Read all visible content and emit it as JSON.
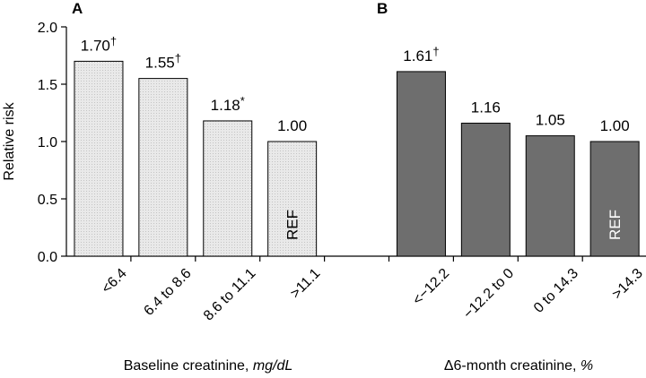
{
  "chart_data": {
    "type": "bar",
    "ylabel": "Relative risk",
    "ylim": [
      0,
      2.0
    ],
    "yticks": [
      "0.0",
      "0.5",
      "1.0",
      "1.5",
      "2.0"
    ],
    "ytick_values": [
      0,
      0.5,
      1.0,
      1.5,
      2.0
    ],
    "grid": false,
    "panels": [
      {
        "letter": "A",
        "xlabel_prefix": "Baseline creatinine, ",
        "xlabel_unit": "mg/dL",
        "fill": "#e4e4e4",
        "ref_text_color": "#000000",
        "categories": [
          "<6.4",
          "6.4 to 8.6",
          "8.6 to 11.1",
          ">11.1"
        ],
        "values": [
          1.7,
          1.55,
          1.18,
          1.0
        ],
        "value_labels": [
          "1.70",
          "1.55",
          "1.18",
          "1.00"
        ],
        "marks": [
          "†",
          "†",
          "*",
          ""
        ],
        "ref_index": 3,
        "ref_label": "REF"
      },
      {
        "letter": "B",
        "xlabel_prefix": "Δ6-month creatinine, ",
        "xlabel_unit": "%",
        "fill": "#6e6e6e",
        "ref_text_color": "#ffffff",
        "categories": [
          "<−12.2",
          "−12.2 to 0",
          "0 to 14.3",
          ">14.3"
        ],
        "values": [
          1.61,
          1.16,
          1.05,
          1.0
        ],
        "value_labels": [
          "1.61",
          "1.16",
          "1.05",
          "1.00"
        ],
        "marks": [
          "†",
          "",
          "",
          ""
        ],
        "ref_index": 3,
        "ref_label": "REF"
      }
    ]
  }
}
